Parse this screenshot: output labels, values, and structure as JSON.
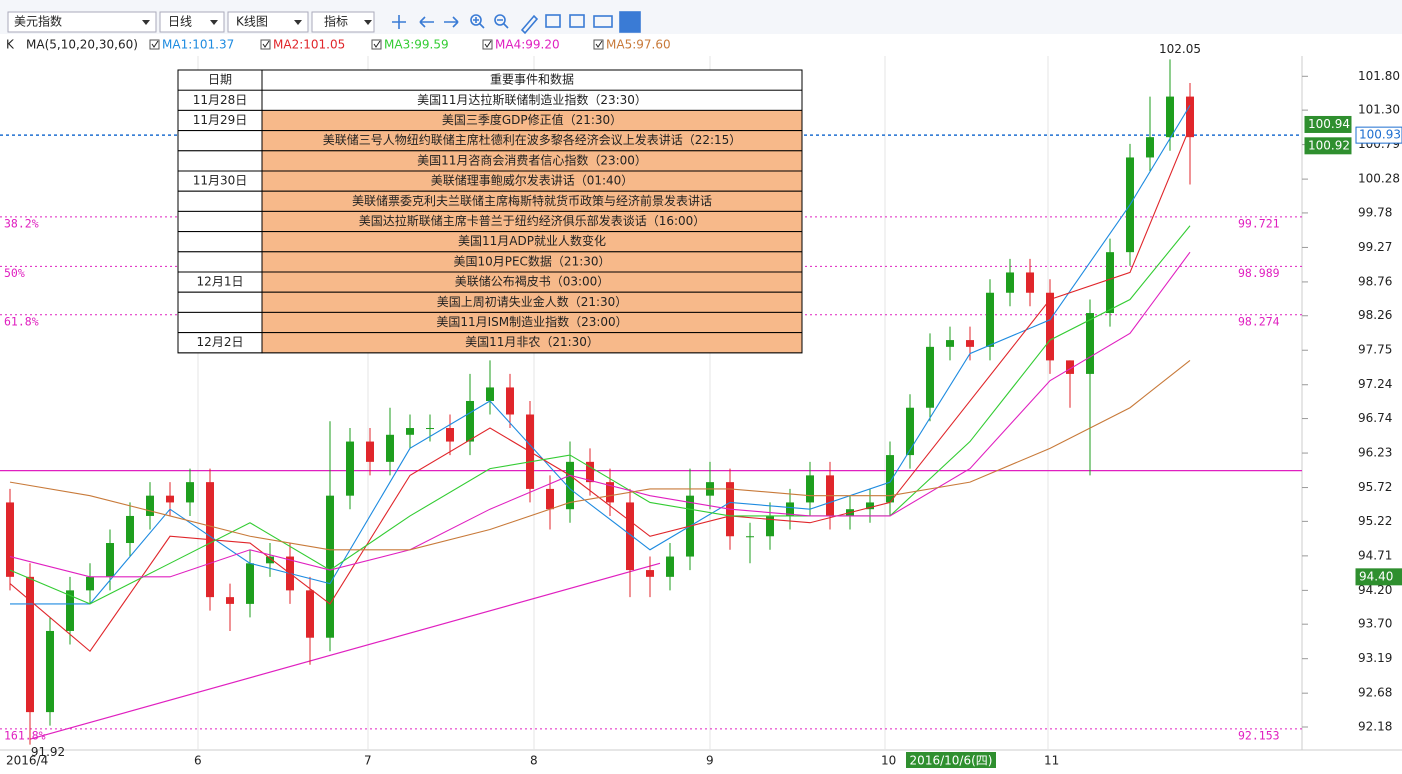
{
  "toolbar": {
    "symbol": "美元指数",
    "period": "日线",
    "chart_type": "K线图",
    "indicator": "指标"
  },
  "chart_data": {
    "type": "candlestick",
    "indicator_label": "K",
    "ma_label": "MA(5,10,20,30,60)",
    "up_color": "#1e9e1e",
    "down_color": "#e0262b",
    "candles": {
      "open": [
        95.5,
        94.4,
        92.4,
        93.6,
        94.2,
        94.4,
        94.9,
        95.3,
        95.6,
        95.5,
        95.8,
        94.1,
        94.0,
        94.6,
        94.7,
        94.2,
        93.5,
        95.6,
        96.4,
        96.1,
        96.5,
        96.6,
        96.6,
        96.4,
        97.0,
        97.2,
        96.8,
        95.7,
        95.4,
        96.1,
        95.8,
        95.5,
        94.5,
        94.4,
        94.7,
        95.6,
        95.8,
        95.0,
        95.0,
        95.3,
        95.5,
        95.9,
        95.3,
        95.4,
        95.5,
        96.2,
        96.9,
        97.8,
        97.9,
        97.8,
        98.6,
        98.9,
        98.6,
        97.6,
        97.4,
        98.3,
        99.2,
        100.6,
        100.9,
        101.5
      ],
      "high": [
        95.7,
        94.6,
        93.8,
        94.4,
        94.6,
        95.1,
        95.5,
        95.8,
        95.8,
        96.0,
        96.0,
        94.3,
        94.8,
        94.9,
        94.9,
        94.4,
        96.7,
        96.6,
        96.6,
        96.9,
        96.8,
        96.8,
        96.8,
        97.4,
        97.6,
        97.4,
        97.0,
        95.9,
        96.4,
        96.3,
        96.0,
        95.7,
        94.7,
        94.9,
        96.0,
        96.1,
        96.0,
        95.2,
        95.5,
        95.7,
        96.1,
        96.1,
        95.6,
        95.7,
        96.4,
        97.1,
        98.0,
        98.1,
        98.1,
        98.8,
        99.1,
        99.1,
        98.8,
        97.6,
        98.5,
        99.4,
        100.8,
        101.5,
        102.05,
        101.7
      ],
      "low": [
        94.2,
        91.92,
        92.2,
        93.4,
        94.0,
        94.2,
        94.7,
        95.1,
        95.3,
        95.3,
        93.9,
        93.6,
        93.8,
        94.4,
        94.0,
        93.1,
        93.3,
        95.4,
        95.9,
        95.9,
        96.3,
        96.4,
        96.2,
        96.2,
        96.8,
        96.6,
        95.5,
        95.1,
        95.2,
        95.6,
        95.3,
        94.1,
        94.1,
        94.2,
        94.5,
        95.4,
        94.8,
        94.6,
        94.8,
        95.1,
        95.3,
        95.1,
        95.1,
        95.2,
        95.3,
        96.0,
        96.7,
        97.6,
        97.6,
        97.6,
        98.4,
        98.4,
        97.4,
        96.9,
        95.9,
        98.1,
        99.0,
        100.4,
        100.7,
        100.2
      ],
      "close": [
        94.4,
        92.4,
        93.6,
        94.2,
        94.4,
        94.9,
        95.3,
        95.6,
        95.5,
        95.8,
        94.1,
        94.0,
        94.6,
        94.7,
        94.2,
        93.5,
        95.6,
        96.4,
        96.1,
        96.5,
        96.6,
        96.6,
        96.4,
        97.0,
        97.2,
        96.8,
        95.7,
        95.4,
        96.1,
        95.8,
        95.5,
        94.5,
        94.4,
        94.7,
        95.6,
        95.8,
        95.0,
        95.0,
        95.3,
        95.5,
        95.9,
        95.3,
        95.4,
        95.5,
        96.2,
        96.9,
        97.8,
        97.9,
        97.8,
        98.6,
        98.9,
        98.6,
        97.6,
        97.4,
        98.3,
        99.2,
        100.6,
        100.9,
        101.5,
        100.9
      ]
    },
    "ma_series": [
      {
        "name": "MA1:101.37",
        "color": "#1e8be0",
        "x": [
          0,
          4,
          8,
          12,
          16,
          20,
          24,
          28,
          32,
          36,
          40,
          44,
          48,
          52,
          56,
          59
        ],
        "values": [
          94.0,
          94.0,
          95.4,
          94.6,
          94.3,
          96.3,
          97.0,
          95.7,
          94.8,
          95.5,
          95.4,
          95.8,
          97.7,
          98.2,
          99.9,
          101.37
        ]
      },
      {
        "name": "MA2:101.05",
        "color": "#e0262b",
        "x": [
          0,
          4,
          8,
          12,
          16,
          20,
          24,
          28,
          32,
          36,
          40,
          44,
          48,
          52,
          56,
          59
        ],
        "values": [
          94.3,
          93.3,
          95.0,
          94.9,
          94.0,
          95.9,
          96.6,
          95.9,
          95.0,
          95.3,
          95.2,
          95.5,
          97.0,
          98.5,
          98.9,
          101.05
        ]
      },
      {
        "name": "MA3:99.59",
        "color": "#33cc33",
        "x": [
          0,
          4,
          8,
          12,
          16,
          20,
          24,
          28,
          32,
          36,
          40,
          44,
          48,
          52,
          56,
          59
        ],
        "values": [
          94.5,
          94.0,
          94.6,
          95.2,
          94.5,
          95.3,
          96.0,
          96.2,
          95.5,
          95.3,
          95.3,
          95.3,
          96.4,
          97.9,
          98.5,
          99.59
        ]
      },
      {
        "name": "MA4:99.20",
        "color": "#e020c0",
        "x": [
          0,
          4,
          8,
          12,
          16,
          20,
          24,
          28,
          32,
          36,
          40,
          44,
          48,
          52,
          56,
          59
        ],
        "values": [
          94.7,
          94.4,
          94.4,
          94.8,
          94.5,
          94.8,
          95.4,
          95.9,
          95.6,
          95.4,
          95.3,
          95.3,
          96.0,
          97.3,
          98.0,
          99.2
        ]
      },
      {
        "name": "MA5:97.60",
        "color": "#c87a3a",
        "x": [
          0,
          4,
          8,
          12,
          16,
          20,
          24,
          28,
          32,
          36,
          40,
          44,
          48,
          52,
          56,
          59
        ],
        "values": [
          95.8,
          95.6,
          95.3,
          95.0,
          94.8,
          94.8,
          95.1,
          95.5,
          95.7,
          95.7,
          95.6,
          95.6,
          95.8,
          96.3,
          96.9,
          97.6
        ]
      }
    ],
    "ylim": [
      91.84,
      102.1
    ],
    "yticks": [
      {
        "value": 101.8,
        "label": "101.80"
      },
      {
        "value": 101.3,
        "label": "101.30"
      },
      100.79,
      100.28,
      99.78,
      99.27,
      98.76,
      98.26,
      97.75,
      97.24,
      96.74,
      96.23,
      95.72,
      95.22,
      94.71,
      {
        "value": 94.2,
        "label": "94.20"
      },
      {
        "value": 93.7,
        "label": "93.70"
      },
      93.19,
      92.68,
      92.18
    ],
    "xticks": [
      {
        "value": 0,
        "label": "2016/4"
      },
      {
        "value": 9.4,
        "label": "6"
      },
      {
        "value": 17.9,
        "label": "7"
      },
      {
        "value": 26.2,
        "label": "8"
      },
      {
        "value": 35,
        "label": "9"
      },
      {
        "value": 43.75,
        "label": "10"
      },
      {
        "value": 51.9,
        "label": "11"
      }
    ],
    "date_tag": {
      "value": 47,
      "label": "2016/10/6(四)"
    },
    "fib_levels": [
      {
        "label": "38.2%",
        "value": 99.721
      },
      {
        "label": "50%",
        "value": 98.989
      },
      {
        "label": "61.8%",
        "value": 98.274
      },
      {
        "label": "161.8%",
        "value": 92.153
      }
    ],
    "hline": 95.97,
    "trendline": {
      "x": [
        1,
        32.5
      ],
      "values": [
        92.0,
        94.6
      ]
    },
    "high_label": 102.05,
    "low_label": 91.92,
    "price_tags": [
      100.94,
      100.92,
      100.93,
      {
        "value": 94.4,
        "label": "94.40"
      }
    ]
  },
  "table": {
    "header": [
      "日期",
      "重要事件和数据"
    ],
    "rows": [
      [
        "11月28日",
        "美国11月达拉斯联储制造业指数（23:30）"
      ],
      [
        "11月29日",
        "美国三季度GDP修正值（21:30）"
      ],
      [
        null,
        "美联储三号人物纽约联储主席杜德利在波多黎各经济会议上发表讲话（22:15）"
      ],
      [
        null,
        "美国11月咨商会消费者信心指数（23:00）"
      ],
      [
        "11月30日",
        "美联储理事鲍威尔发表讲话（01:40）"
      ],
      [
        null,
        "美联储票委克利夫兰联储主席梅斯特就货币政策与经济前景发表讲话"
      ],
      [
        null,
        "美国达拉斯联储主席卡普兰于纽约经济俱乐部发表谈话（16:00）"
      ],
      [
        null,
        "美国11月ADP就业人数变化"
      ],
      [
        null,
        "美国10月PEC数据（21:30）"
      ],
      [
        "12月1日",
        "美联储公布褐皮书（03:00）"
      ],
      [
        null,
        "美国上周初请失业金人数（21:30）"
      ],
      [
        null,
        "美国11月ISM制造业指数（23:00）"
      ],
      [
        "12月2日",
        "美国11月非农（21:30）"
      ]
    ]
  }
}
